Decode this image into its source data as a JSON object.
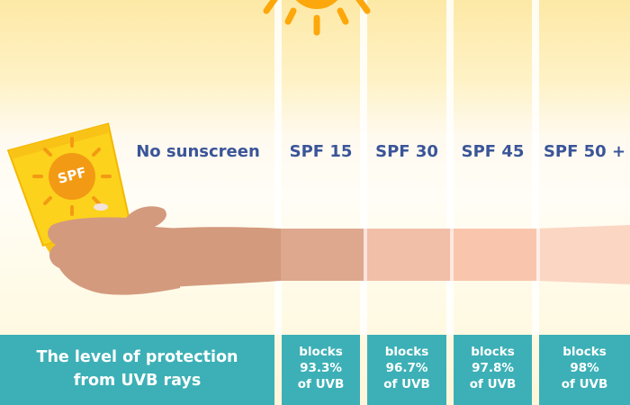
{
  "headers": [
    "No sunscreen",
    "SPF 15",
    "SPF 30",
    "SPF 45",
    "SPF 50 +"
  ],
  "bottle_label": "SPF",
  "protection_label": {
    "line1": "The level of protection",
    "line2": "from UVB rays"
  },
  "levels": [
    {
      "line1": "blocks",
      "line2": "93.3%",
      "line3": "of UVB"
    },
    {
      "line1": "blocks",
      "line2": "96.7%",
      "line3": "of UVB"
    },
    {
      "line1": "blocks",
      "line2": "97.8%",
      "line3": "of UVB"
    },
    {
      "line1": "blocks",
      "line2": "98%",
      "line3": "of UVB"
    }
  ],
  "colors": {
    "heading": "#3a5598",
    "panel": "#3cb0b6",
    "sun": "#fca70b",
    "bottle": "#fcd21c",
    "skin": "#d49a7d"
  }
}
